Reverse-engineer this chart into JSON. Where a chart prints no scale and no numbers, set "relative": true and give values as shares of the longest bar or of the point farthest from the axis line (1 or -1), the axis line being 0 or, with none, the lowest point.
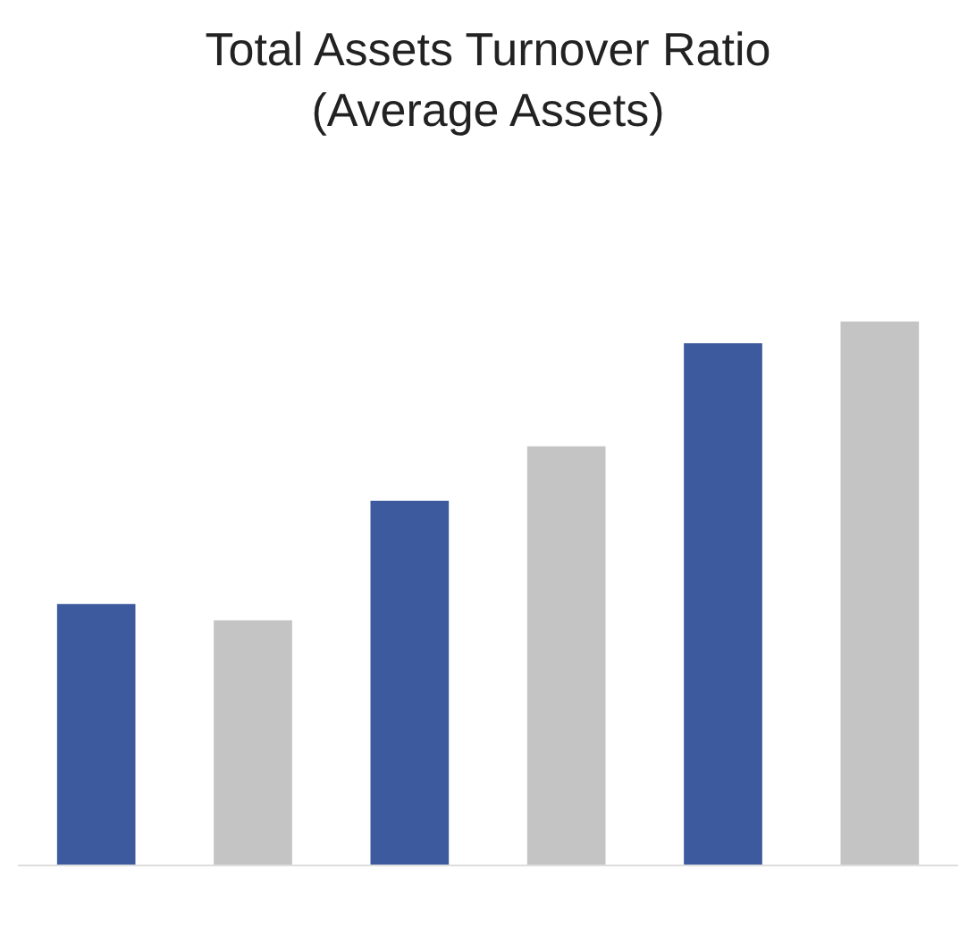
{
  "chart_data": {
    "type": "bar",
    "title": "Total Assets Turnover Ratio",
    "subtitle": "(Average Assets)",
    "categories": [
      null,
      null,
      null,
      null,
      null,
      null
    ],
    "values": [
      0.48,
      0.45,
      0.67,
      0.77,
      0.96,
      1
    ],
    "colors": [
      "#3d5a9e",
      "#c4c4c4",
      "#3d5a9e",
      "#c4c4c4",
      "#3d5a9e",
      "#c4c4c4"
    ],
    "relative": true,
    "legend": false
  }
}
